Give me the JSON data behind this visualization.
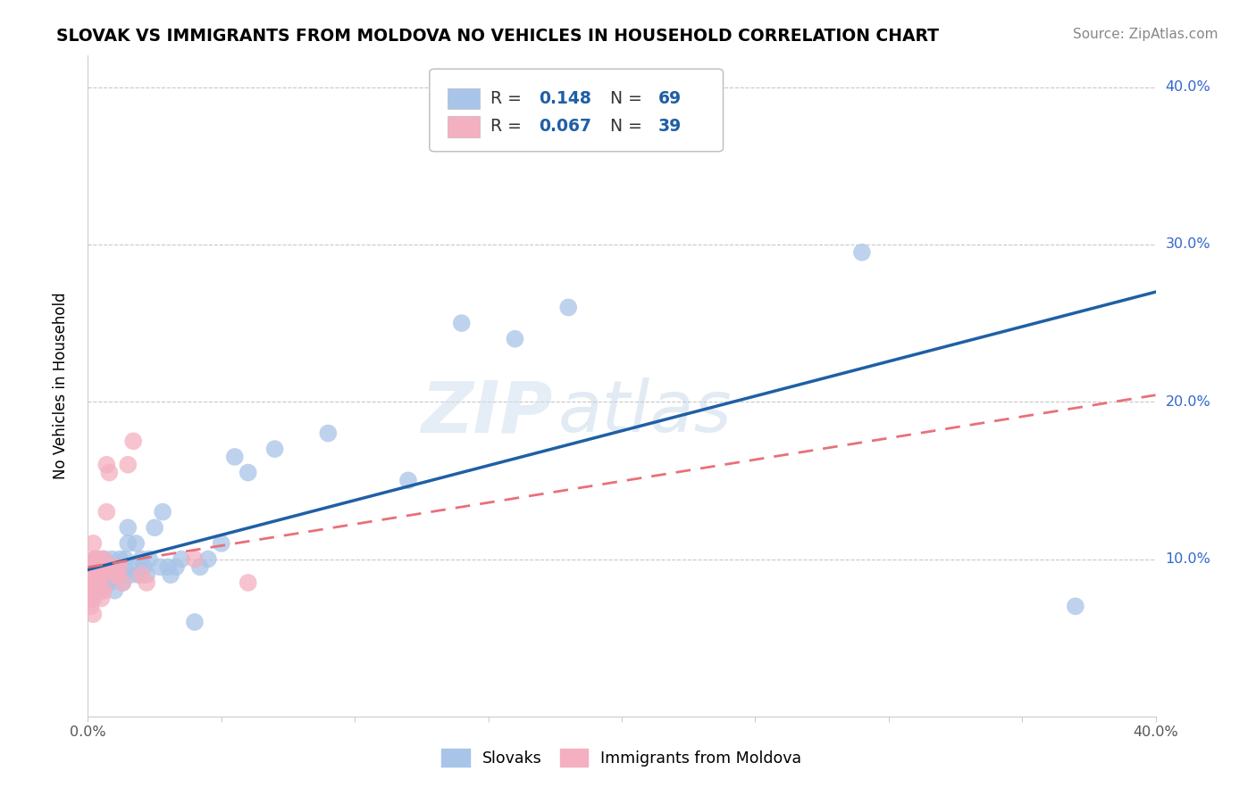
{
  "title": "SLOVAK VS IMMIGRANTS FROM MOLDOVA NO VEHICLES IN HOUSEHOLD CORRELATION CHART",
  "source": "Source: ZipAtlas.com",
  "ylabel": "No Vehicles in Household",
  "watermark_zip": "ZIP",
  "watermark_atlas": "atlas",
  "slovak_color": "#a8c4e8",
  "moldova_color": "#f4afc0",
  "slovak_line_color": "#1f5fa6",
  "moldova_line_color": "#e8707a",
  "background_color": "#ffffff",
  "grid_color": "#c8c8c8",
  "xlim": [
    0.0,
    0.4
  ],
  "ylim": [
    0.0,
    0.42
  ],
  "legend_R1": "0.148",
  "legend_N1": "69",
  "legend_R2": "0.067",
  "legend_N2": "39",
  "slovaks_x": [
    0.001,
    0.001,
    0.001,
    0.002,
    0.002,
    0.002,
    0.002,
    0.003,
    0.003,
    0.003,
    0.003,
    0.004,
    0.004,
    0.004,
    0.005,
    0.005,
    0.005,
    0.005,
    0.006,
    0.006,
    0.006,
    0.007,
    0.007,
    0.007,
    0.008,
    0.008,
    0.009,
    0.009,
    0.01,
    0.01,
    0.011,
    0.011,
    0.012,
    0.012,
    0.013,
    0.013,
    0.014,
    0.014,
    0.015,
    0.015,
    0.016,
    0.017,
    0.018,
    0.019,
    0.02,
    0.021,
    0.022,
    0.023,
    0.025,
    0.027,
    0.028,
    0.03,
    0.031,
    0.033,
    0.035,
    0.04,
    0.042,
    0.045,
    0.05,
    0.055,
    0.06,
    0.07,
    0.09,
    0.12,
    0.14,
    0.16,
    0.18,
    0.29,
    0.37
  ],
  "slovaks_y": [
    0.09,
    0.085,
    0.08,
    0.095,
    0.09,
    0.085,
    0.075,
    0.1,
    0.095,
    0.09,
    0.08,
    0.095,
    0.09,
    0.085,
    0.1,
    0.095,
    0.09,
    0.085,
    0.1,
    0.095,
    0.09,
    0.095,
    0.09,
    0.085,
    0.09,
    0.085,
    0.1,
    0.095,
    0.09,
    0.08,
    0.095,
    0.09,
    0.095,
    0.1,
    0.09,
    0.085,
    0.1,
    0.095,
    0.12,
    0.11,
    0.09,
    0.095,
    0.11,
    0.09,
    0.1,
    0.095,
    0.09,
    0.1,
    0.12,
    0.095,
    0.13,
    0.095,
    0.09,
    0.095,
    0.1,
    0.06,
    0.095,
    0.1,
    0.11,
    0.165,
    0.155,
    0.17,
    0.18,
    0.15,
    0.25,
    0.24,
    0.26,
    0.295,
    0.07
  ],
  "moldova_x": [
    0.001,
    0.001,
    0.001,
    0.001,
    0.001,
    0.002,
    0.002,
    0.002,
    0.002,
    0.002,
    0.002,
    0.003,
    0.003,
    0.003,
    0.003,
    0.003,
    0.004,
    0.004,
    0.004,
    0.005,
    0.005,
    0.005,
    0.005,
    0.006,
    0.006,
    0.007,
    0.007,
    0.008,
    0.009,
    0.01,
    0.011,
    0.012,
    0.013,
    0.015,
    0.017,
    0.02,
    0.022,
    0.04,
    0.06
  ],
  "moldova_y": [
    0.07,
    0.075,
    0.08,
    0.09,
    0.095,
    0.065,
    0.08,
    0.09,
    0.095,
    0.1,
    0.11,
    0.08,
    0.085,
    0.09,
    0.095,
    0.1,
    0.085,
    0.09,
    0.1,
    0.075,
    0.08,
    0.09,
    0.095,
    0.08,
    0.1,
    0.13,
    0.16,
    0.155,
    0.095,
    0.09,
    0.09,
    0.095,
    0.085,
    0.16,
    0.175,
    0.09,
    0.085,
    0.1,
    0.085
  ]
}
